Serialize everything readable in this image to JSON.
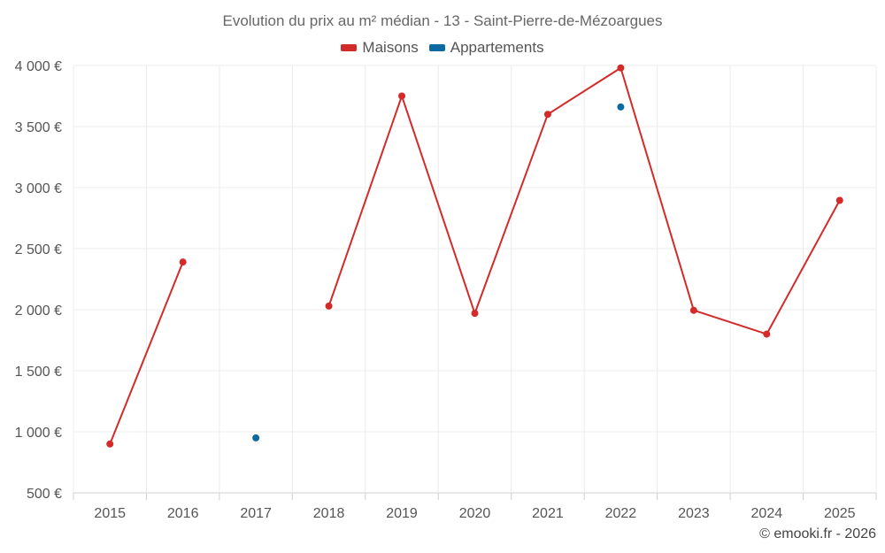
{
  "chart_data": {
    "type": "line",
    "title": "Evolution du prix au m² médian - 13 - Saint-Pierre-de-Mézoargues",
    "xlabel": "",
    "ylabel": "",
    "categories": [
      "2015",
      "2016",
      "2017",
      "2018",
      "2019",
      "2020",
      "2021",
      "2022",
      "2023",
      "2024",
      "2025"
    ],
    "ylim": [
      500,
      4000
    ],
    "yticks": [
      500,
      1000,
      1500,
      2000,
      2500,
      3000,
      3500,
      4000
    ],
    "ytick_labels": [
      "500 €",
      "1 000 €",
      "1 500 €",
      "2 000 €",
      "2 500 €",
      "3 000 €",
      "3 500 €",
      "4 000 €"
    ],
    "grid": true,
    "legend_position": "top-center",
    "series": [
      {
        "name": "Maisons",
        "color": "#d32a2a",
        "values": [
          900,
          2390,
          null,
          2030,
          3750,
          1970,
          3600,
          3980,
          1995,
          1800,
          2895
        ]
      },
      {
        "name": "Appartements",
        "color": "#0b6aa2",
        "values": [
          null,
          null,
          950,
          null,
          null,
          null,
          null,
          3660,
          null,
          null,
          null
        ]
      }
    ]
  },
  "credit": "© emooki.fr - 2026"
}
